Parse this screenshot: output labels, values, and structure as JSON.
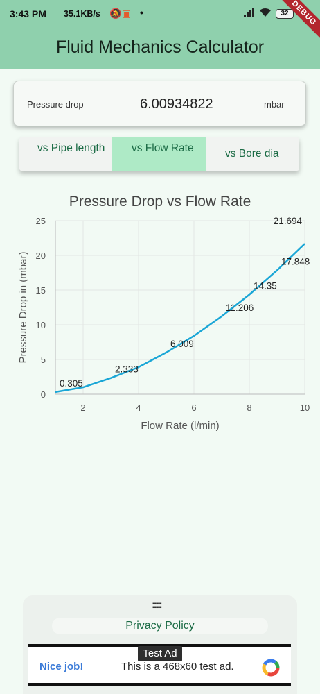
{
  "status_bar": {
    "time": "3:43 PM",
    "net_speed": "35.1KB/s",
    "battery": "32",
    "debug_banner": "DEBUG"
  },
  "app": {
    "title": "Fluid Mechanics Calculator"
  },
  "result": {
    "label": "Pressure drop",
    "value": "6.00934822",
    "unit": "mbar"
  },
  "tabs": [
    {
      "label": "vs Pipe length",
      "selected": false
    },
    {
      "label": "vs Flow Rate",
      "selected": true
    },
    {
      "label": "vs Bore dia",
      "selected": false
    }
  ],
  "chart_data": {
    "type": "line",
    "title": "Pressure Drop vs Flow Rate",
    "xlabel": "Flow Rate (l/min)",
    "ylabel": "Pressure Drop in (mbar)",
    "xlim": [
      1,
      10
    ],
    "ylim": [
      0,
      25
    ],
    "x_ticks": [
      2,
      4,
      6,
      8,
      10
    ],
    "y_ticks": [
      0,
      5,
      10,
      15,
      20,
      25
    ],
    "grid": true,
    "color": "#1aa6d6",
    "points": [
      {
        "x": 1,
        "y": 0.305
      },
      {
        "x": 2,
        "y": 1.0
      },
      {
        "x": 3,
        "y": 2.333
      },
      {
        "x": 4,
        "y": 3.9
      },
      {
        "x": 5,
        "y": 6.009
      },
      {
        "x": 6,
        "y": 8.4
      },
      {
        "x": 7,
        "y": 11.206
      },
      {
        "x": 8,
        "y": 14.35
      },
      {
        "x": 9,
        "y": 17.848
      },
      {
        "x": 10,
        "y": 21.694
      }
    ],
    "labels": [
      {
        "x": 1,
        "y": 0.305,
        "text": "0.305"
      },
      {
        "x": 3,
        "y": 2.333,
        "text": "2.333"
      },
      {
        "x": 5,
        "y": 6.009,
        "text": "6.009"
      },
      {
        "x": 7,
        "y": 11.206,
        "text": "11.206"
      },
      {
        "x": 8,
        "y": 14.35,
        "text": "14.35"
      },
      {
        "x": 9,
        "y": 17.848,
        "text": "17.848"
      },
      {
        "x": 10,
        "y": 21.694,
        "text": "21.694"
      }
    ]
  },
  "bottom_sheet": {
    "privacy_label": "Privacy Policy"
  },
  "ad": {
    "badge": "Test Ad",
    "headline": "Nice job!",
    "message": "This is a 468x60 test ad."
  }
}
